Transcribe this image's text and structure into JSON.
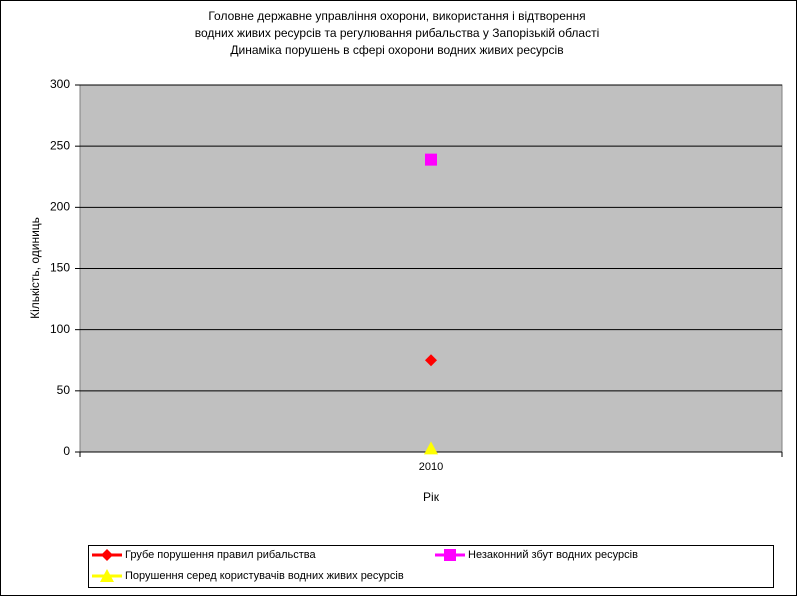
{
  "chart_data": {
    "type": "line",
    "title": [
      "Головне державне управління охорони, використання і відтворення",
      "водних живих ресурсів та регулювання рибальства у Запорізькій області",
      "Динаміка порушень в сфері охорони водних живих ресурсів"
    ],
    "x_label": "Рік",
    "y_label": "Кількість, одиниць",
    "categories": [
      "2010"
    ],
    "series": [
      {
        "name": "Грубе порушення правил рибальства",
        "color": "#ff0000",
        "marker": "diamond",
        "values": [
          75
        ]
      },
      {
        "name": "Незаконний збут водних ресурсів",
        "color": "#ff00ff",
        "marker": "square",
        "values": [
          239
        ]
      },
      {
        "name": "Порушення серед користувачів водних живих ресурсів",
        "color": "#ffff00",
        "marker": "triangle",
        "values": [
          3
        ]
      }
    ],
    "ylim": [
      0,
      300
    ],
    "yticks": [
      0,
      50,
      100,
      150,
      200,
      250,
      300
    ],
    "grid": true,
    "legend": "bottom"
  }
}
